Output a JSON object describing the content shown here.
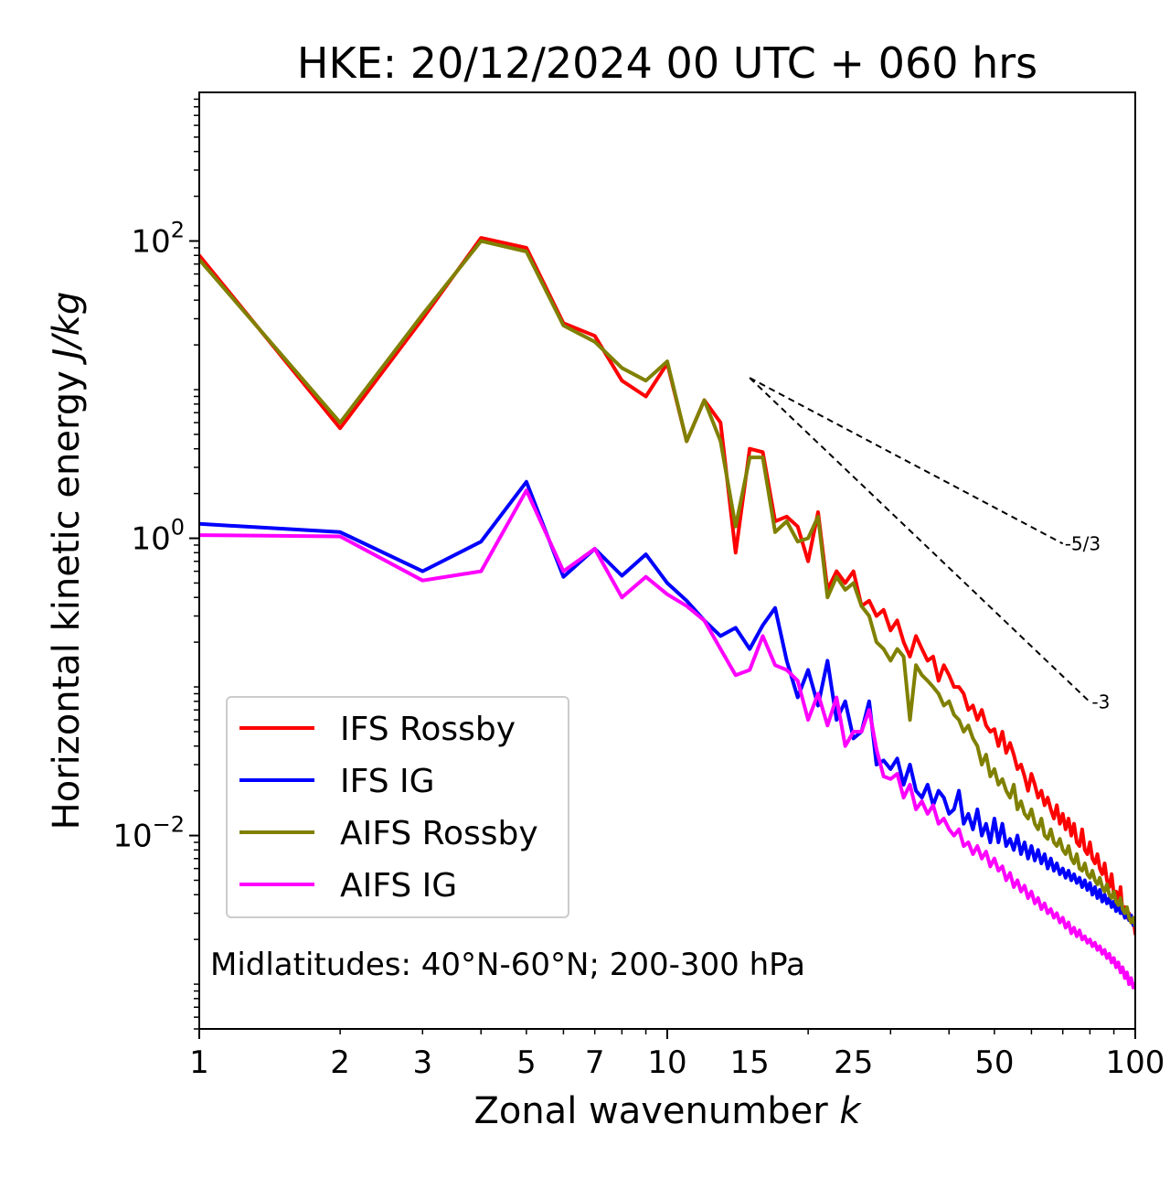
{
  "chart_data": {
    "type": "line",
    "title": "HKE: 20/12/2024 00 UTC + 060 hrs",
    "xlabel": "Zonal wavenumber",
    "xlabel_var": "k",
    "ylabel": "Horizontal kinetic energy",
    "ylabel_unit": "J/kg",
    "xscale": "log",
    "yscale": "log",
    "xlim": [
      1,
      100
    ],
    "ylim": [
      0.0005,
      1000
    ],
    "x_ticks": [
      1,
      2,
      3,
      5,
      7,
      10,
      15,
      25,
      50,
      100
    ],
    "x_tick_labels": [
      "1",
      "2",
      "3",
      "5",
      "7",
      "10",
      "15",
      "25",
      "50",
      "100"
    ],
    "y_ticks": [
      {
        "value": 0.01,
        "base": "10",
        "exp": "−2"
      },
      {
        "value": 1,
        "base": "10",
        "exp": "0"
      },
      {
        "value": 100,
        "base": "10",
        "exp": "2"
      }
    ],
    "legend": {
      "location": "lower-left"
    },
    "annotation": "Midlatitudes: 40°N-60°N; 200-300 hPa",
    "reference_lines": [
      {
        "label": "-5/3",
        "slope": -1.6667,
        "x_start": 15,
        "y_start": 12,
        "x_end": 70
      },
      {
        "label": "-3",
        "slope": -3,
        "x_start": 15,
        "y_start": 12,
        "x_end": 80
      }
    ],
    "series": [
      {
        "name": "IFS Rossby",
        "color": "#ff0000",
        "x": [
          1,
          2,
          3,
          4,
          5,
          6,
          7,
          8,
          9,
          10,
          11,
          12,
          13,
          14,
          15,
          16,
          17,
          18,
          19,
          20,
          21,
          22,
          23,
          24,
          25,
          26,
          27,
          28,
          29,
          30,
          31,
          32,
          33,
          34,
          35,
          36,
          37,
          38,
          39,
          40,
          41,
          42,
          43,
          44,
          45,
          46,
          47,
          48,
          49,
          50,
          51,
          52,
          53,
          54,
          55,
          56,
          57,
          58,
          59,
          60,
          61,
          62,
          63,
          64,
          65,
          66,
          67,
          68,
          69,
          70,
          71,
          72,
          73,
          74,
          75,
          76,
          77,
          78,
          79,
          80,
          81,
          82,
          83,
          84,
          85,
          86,
          87,
          88,
          89,
          90,
          91,
          92,
          93,
          94,
          95,
          96,
          97,
          98,
          99,
          100
        ],
        "y": [
          80,
          5.5,
          30,
          105,
          90,
          28,
          23,
          11.5,
          9,
          15,
          4.5,
          8.5,
          6,
          0.8,
          4,
          3.8,
          1.3,
          1.4,
          1.2,
          0.7,
          1.5,
          0.45,
          0.6,
          0.5,
          0.6,
          0.35,
          0.38,
          0.3,
          0.33,
          0.24,
          0.28,
          0.2,
          0.16,
          0.22,
          0.18,
          0.15,
          0.16,
          0.11,
          0.14,
          0.12,
          0.1,
          0.1,
          0.09,
          0.07,
          0.075,
          0.06,
          0.07,
          0.055,
          0.05,
          0.052,
          0.04,
          0.05,
          0.036,
          0.042,
          0.035,
          0.028,
          0.03,
          0.025,
          0.02,
          0.026,
          0.022,
          0.018,
          0.02,
          0.016,
          0.018,
          0.015,
          0.013,
          0.016,
          0.012,
          0.014,
          0.011,
          0.013,
          0.01,
          0.012,
          0.009,
          0.0085,
          0.011,
          0.008,
          0.0075,
          0.009,
          0.007,
          0.0065,
          0.0075,
          0.006,
          0.0055,
          0.0065,
          0.005,
          0.0045,
          0.0055,
          0.004,
          0.0042,
          0.0035,
          0.0045,
          0.003,
          0.0033,
          0.0028,
          0.003,
          0.0026,
          0.0028,
          0.0022
        ]
      },
      {
        "name": "IFS IG",
        "color": "#0000ff",
        "x": [
          1,
          2,
          3,
          4,
          5,
          6,
          7,
          8,
          9,
          10,
          11,
          12,
          13,
          14,
          15,
          16,
          17,
          18,
          19,
          20,
          21,
          22,
          23,
          24,
          25,
          26,
          27,
          28,
          29,
          30,
          31,
          32,
          33,
          34,
          35,
          36,
          37,
          38,
          39,
          40,
          41,
          42,
          43,
          44,
          45,
          46,
          47,
          48,
          49,
          50,
          51,
          52,
          53,
          54,
          55,
          56,
          57,
          58,
          59,
          60,
          61,
          62,
          63,
          64,
          65,
          66,
          67,
          68,
          69,
          70,
          71,
          72,
          73,
          74,
          75,
          76,
          77,
          78,
          79,
          80,
          81,
          82,
          83,
          84,
          85,
          86,
          87,
          88,
          89,
          90,
          91,
          92,
          93,
          94,
          95,
          96,
          97,
          98,
          99,
          100
        ],
        "y": [
          1.25,
          1.1,
          0.6,
          0.95,
          2.4,
          0.55,
          0.85,
          0.56,
          0.78,
          0.5,
          0.38,
          0.28,
          0.22,
          0.25,
          0.18,
          0.26,
          0.34,
          0.15,
          0.085,
          0.13,
          0.075,
          0.15,
          0.06,
          0.08,
          0.045,
          0.05,
          0.08,
          0.03,
          0.032,
          0.028,
          0.033,
          0.022,
          0.03,
          0.02,
          0.018,
          0.022,
          0.016,
          0.02,
          0.018,
          0.014,
          0.015,
          0.02,
          0.012,
          0.014,
          0.011,
          0.015,
          0.01,
          0.012,
          0.009,
          0.013,
          0.009,
          0.012,
          0.0085,
          0.0095,
          0.008,
          0.01,
          0.0075,
          0.009,
          0.007,
          0.0085,
          0.0068,
          0.008,
          0.0065,
          0.0075,
          0.006,
          0.007,
          0.0058,
          0.0065,
          0.0055,
          0.006,
          0.0052,
          0.0058,
          0.005,
          0.0055,
          0.0048,
          0.0052,
          0.0045,
          0.005,
          0.0043,
          0.0048,
          0.004,
          0.0045,
          0.0038,
          0.0043,
          0.0036,
          0.004,
          0.0035,
          0.0038,
          0.0033,
          0.0036,
          0.0031,
          0.0034,
          0.003,
          0.0032,
          0.0028,
          0.0031,
          0.0027,
          0.0029,
          0.0025,
          0.0027
        ]
      },
      {
        "name": "AIFS Rossby",
        "color": "#808000",
        "x": [
          1,
          2,
          3,
          4,
          5,
          6,
          7,
          8,
          9,
          10,
          11,
          12,
          13,
          14,
          15,
          16,
          17,
          18,
          19,
          20,
          21,
          22,
          23,
          24,
          25,
          26,
          27,
          28,
          29,
          30,
          31,
          32,
          33,
          34,
          35,
          36,
          37,
          38,
          39,
          40,
          41,
          42,
          43,
          44,
          45,
          46,
          47,
          48,
          49,
          50,
          51,
          52,
          53,
          54,
          55,
          56,
          57,
          58,
          59,
          60,
          61,
          62,
          63,
          64,
          65,
          66,
          67,
          68,
          69,
          70,
          71,
          72,
          73,
          74,
          75,
          76,
          77,
          78,
          79,
          80,
          81,
          82,
          83,
          84,
          85,
          86,
          87,
          88,
          89,
          90,
          91,
          92,
          93,
          94,
          95,
          96,
          97,
          98,
          99,
          100
        ],
        "y": [
          75,
          6,
          32,
          100,
          85,
          27,
          21,
          14,
          11.5,
          15.5,
          4.5,
          8.5,
          4.5,
          1.2,
          3.5,
          3.5,
          1.1,
          1.3,
          0.95,
          1,
          1.4,
          0.4,
          0.55,
          0.45,
          0.5,
          0.35,
          0.3,
          0.2,
          0.18,
          0.15,
          0.18,
          0.16,
          0.06,
          0.14,
          0.12,
          0.11,
          0.1,
          0.09,
          0.075,
          0.08,
          0.065,
          0.06,
          0.05,
          0.055,
          0.045,
          0.04,
          0.03,
          0.035,
          0.025,
          0.028,
          0.022,
          0.024,
          0.02,
          0.018,
          0.022,
          0.015,
          0.017,
          0.014,
          0.013,
          0.015,
          0.012,
          0.011,
          0.013,
          0.01,
          0.0095,
          0.011,
          0.009,
          0.0085,
          0.0095,
          0.008,
          0.0075,
          0.0085,
          0.007,
          0.0065,
          0.0075,
          0.006,
          0.0058,
          0.0065,
          0.0055,
          0.0052,
          0.0058,
          0.005,
          0.0047,
          0.0052,
          0.0045,
          0.0042,
          0.0047,
          0.004,
          0.0038,
          0.0042,
          0.0036,
          0.0034,
          0.0038,
          0.0032,
          0.003,
          0.0033,
          0.0028,
          0.0026,
          0.0028,
          0.0025
        ]
      },
      {
        "name": "AIFS IG",
        "color": "#ff00ff",
        "x": [
          1,
          2,
          3,
          4,
          5,
          6,
          7,
          8,
          9,
          10,
          11,
          12,
          13,
          14,
          15,
          16,
          17,
          18,
          19,
          20,
          21,
          22,
          23,
          24,
          25,
          26,
          27,
          28,
          29,
          30,
          31,
          32,
          33,
          34,
          35,
          36,
          37,
          38,
          39,
          40,
          41,
          42,
          43,
          44,
          45,
          46,
          47,
          48,
          49,
          50,
          51,
          52,
          53,
          54,
          55,
          56,
          57,
          58,
          59,
          60,
          61,
          62,
          63,
          64,
          65,
          66,
          67,
          68,
          69,
          70,
          71,
          72,
          73,
          74,
          75,
          76,
          77,
          78,
          79,
          80,
          81,
          82,
          83,
          84,
          85,
          86,
          87,
          88,
          89,
          90,
          91,
          92,
          93,
          94,
          95,
          96,
          97,
          98,
          99,
          100
        ],
        "y": [
          1.05,
          1.03,
          0.52,
          0.6,
          2.1,
          0.6,
          0.85,
          0.4,
          0.55,
          0.42,
          0.35,
          0.28,
          0.18,
          0.12,
          0.13,
          0.22,
          0.14,
          0.13,
          0.11,
          0.06,
          0.09,
          0.055,
          0.085,
          0.04,
          0.05,
          0.05,
          0.07,
          0.038,
          0.025,
          0.024,
          0.026,
          0.018,
          0.022,
          0.015,
          0.017,
          0.014,
          0.016,
          0.012,
          0.013,
          0.011,
          0.01,
          0.011,
          0.0085,
          0.009,
          0.0075,
          0.0085,
          0.007,
          0.0078,
          0.0062,
          0.007,
          0.0058,
          0.0062,
          0.005,
          0.0056,
          0.0045,
          0.005,
          0.0042,
          0.0046,
          0.0038,
          0.0042,
          0.0035,
          0.0038,
          0.0032,
          0.0035,
          0.003,
          0.0032,
          0.0028,
          0.003,
          0.0026,
          0.0028,
          0.0024,
          0.0026,
          0.0022,
          0.0024,
          0.0021,
          0.0023,
          0.002,
          0.0021,
          0.0019,
          0.002,
          0.0018,
          0.0019,
          0.0017,
          0.0018,
          0.0016,
          0.0017,
          0.0015,
          0.0016,
          0.0014,
          0.0015,
          0.0013,
          0.0014,
          0.0012,
          0.0013,
          0.0011,
          0.0012,
          0.001,
          0.0011,
          0.00095,
          0.001
        ]
      }
    ]
  }
}
